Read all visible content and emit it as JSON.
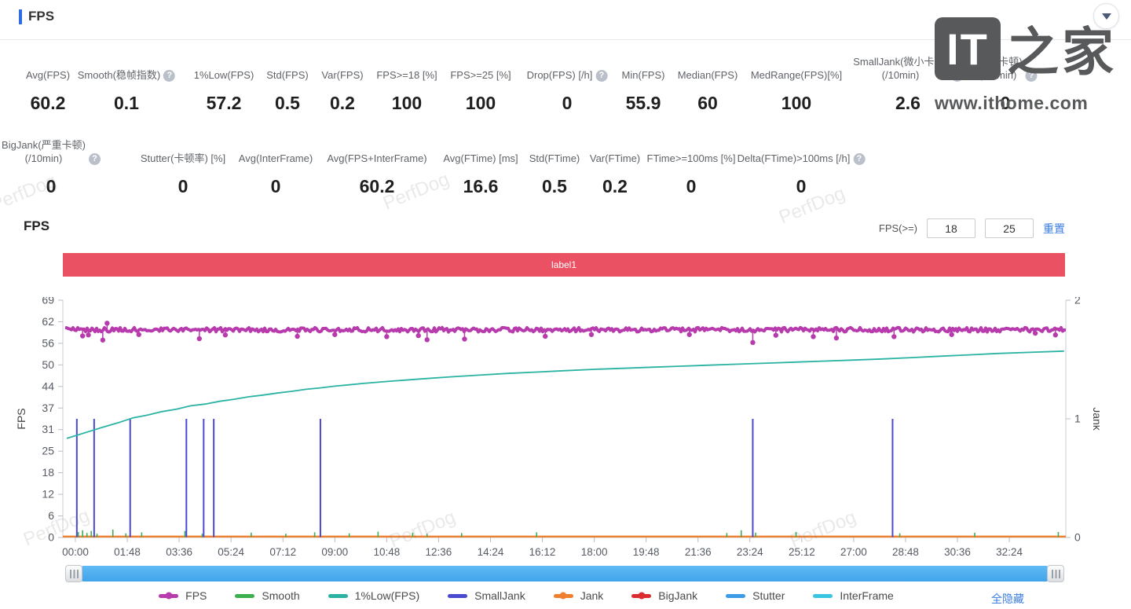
{
  "header": {
    "title": "FPS"
  },
  "collapse_tooltip": "collapse",
  "logo": {
    "it": "IT",
    "zhijia": "之家",
    "url": "www.ithome.com"
  },
  "watermark": "PerfDog",
  "stats_row1": [
    {
      "label": "Avg(FPS)",
      "value": "60.2",
      "help": false
    },
    {
      "label": "Smooth(稳帧指数)",
      "value": "0.1",
      "help": true
    },
    {
      "label": "1%Low(FPS)",
      "value": "57.2",
      "help": false
    },
    {
      "label": "Std(FPS)",
      "value": "0.5",
      "help": false
    },
    {
      "label": "Var(FPS)",
      "value": "0.2",
      "help": false
    },
    {
      "label": "FPS>=18 [%]",
      "value": "100",
      "help": false
    },
    {
      "label": "FPS>=25 [%]",
      "value": "100",
      "help": false
    },
    {
      "label": "Drop(FPS) [/h]",
      "value": "0",
      "help": true
    },
    {
      "label": "Min(FPS)",
      "value": "55.9",
      "help": false
    },
    {
      "label": "Median(FPS)",
      "value": "60",
      "help": false
    },
    {
      "label": "MedRange(FPS)[%]",
      "value": "100",
      "help": false
    },
    {
      "label": "SmallJank(微小卡顿)\n(/10min)",
      "value": "2.6",
      "help": true
    },
    {
      "label": "Jank(卡顿)\n(/10min)",
      "value": "0",
      "help": true
    }
  ],
  "stats_row2": [
    {
      "label": "BigJank(严重卡顿)\n(/10min)",
      "value": "0",
      "help": true
    },
    {
      "label": "Stutter(卡顿率) [%]",
      "value": "0",
      "help": false
    },
    {
      "label": "Avg(InterFrame)",
      "value": "0",
      "help": false
    },
    {
      "label": "Avg(FPS+InterFrame)",
      "value": "60.2",
      "help": false
    },
    {
      "label": "Avg(FTime) [ms]",
      "value": "16.6",
      "help": false
    },
    {
      "label": "Std(FTime)",
      "value": "0.5",
      "help": false
    },
    {
      "label": "Var(FTime)",
      "value": "0.2",
      "help": false
    },
    {
      "label": "FTime>=100ms [%]",
      "value": "0",
      "help": false
    },
    {
      "label": "Delta(FTime)>100ms [/h]",
      "value": "0",
      "help": true
    }
  ],
  "section": {
    "title": "FPS",
    "filter_label": "FPS(>=)",
    "input1": "18",
    "input2": "25",
    "reset": "重置"
  },
  "banner": {
    "text": "label1",
    "color": "#ea5263"
  },
  "chart_data": {
    "type": "line",
    "title": "label1",
    "x_tick_labels": [
      "00:00",
      "01:48",
      "03:36",
      "05:24",
      "07:12",
      "09:00",
      "10:48",
      "12:36",
      "14:24",
      "16:12",
      "18:00",
      "19:48",
      "21:36",
      "23:24",
      "25:12",
      "27:00",
      "28:48",
      "30:36",
      "32:24"
    ],
    "x_minutes_per_tick": 1.8,
    "left_axis": {
      "label": "FPS",
      "ticks": [
        0,
        6,
        12,
        18,
        25,
        31,
        37,
        44,
        50,
        56,
        62,
        69
      ],
      "max": 69
    },
    "right_axis": {
      "label": "Jank",
      "ticks": [
        0,
        1,
        2
      ],
      "max": 2
    },
    "series": [
      {
        "name": "BigJank",
        "color": "#db2c30",
        "type": "flat",
        "axis": "right",
        "value": 0,
        "w": 1.2
      },
      {
        "name": "Stutter",
        "color": "#3e9be8",
        "type": "flat",
        "axis": "right",
        "value": 0,
        "w": 1.2
      },
      {
        "name": "InterFrame",
        "color": "#3ac6e0",
        "type": "flat",
        "axis": "right",
        "value": 0,
        "w": 1.2
      },
      {
        "name": "Jank",
        "color": "#ef8030",
        "type": "flat",
        "axis": "right",
        "value": 0,
        "w": 2.4
      },
      {
        "name": "Smooth",
        "color": "#3daf4f",
        "type": "spikes",
        "axis": "left",
        "w": 1.6,
        "points": [
          [
            0.1,
            1.6
          ],
          [
            0.25,
            2.1
          ],
          [
            0.4,
            1.3
          ],
          [
            0.55,
            1.9
          ],
          [
            0.75,
            1.1
          ],
          [
            1.3,
            2.3
          ],
          [
            1.75,
            1.2
          ],
          [
            2.3,
            1.5
          ],
          [
            3.8,
            1.9
          ],
          [
            4.4,
            1.1
          ],
          [
            6.1,
            1.4
          ],
          [
            7.3,
            1.1
          ],
          [
            8.3,
            1.5
          ],
          [
            9.5,
            1.2
          ],
          [
            10.5,
            1.7
          ],
          [
            11.7,
            1.4
          ],
          [
            12.2,
            1.1
          ],
          [
            13.4,
            1.3
          ],
          [
            16.0,
            1.5
          ],
          [
            22.6,
            1.3
          ],
          [
            23.1,
            2.1
          ],
          [
            23.6,
            1.4
          ],
          [
            25.0,
            1.6
          ],
          [
            28.6,
            1.2
          ],
          [
            31.2,
            1.4
          ],
          [
            34.1,
            1.6
          ]
        ]
      },
      {
        "name": "SmallJank",
        "color": "#4a49d0",
        "type": "spikes",
        "axis": "right",
        "w": 2,
        "points": [
          [
            0.05,
            1
          ],
          [
            0.65,
            1
          ],
          [
            1.9,
            1
          ],
          [
            3.85,
            1
          ],
          [
            4.45,
            1
          ],
          [
            4.8,
            1
          ],
          [
            8.5,
            1
          ],
          [
            23.5,
            1
          ],
          [
            28.35,
            1
          ]
        ]
      },
      {
        "name": "1%Low(FPS)",
        "color": "#2ab3a3",
        "type": "line",
        "axis": "left",
        "w": 1.8,
        "points": [
          [
            -0.3,
            28.8
          ],
          [
            0.5,
            30.9
          ],
          [
            1,
            32.2
          ],
          [
            1.5,
            33.4
          ],
          [
            2,
            34.8
          ],
          [
            2.5,
            35.6
          ],
          [
            3,
            36.6
          ],
          [
            3.5,
            37.3
          ],
          [
            4,
            38.3
          ],
          [
            4.5,
            38.8
          ],
          [
            5,
            39.6
          ],
          [
            5.5,
            40.2
          ],
          [
            6,
            40.9
          ],
          [
            6.5,
            41.4
          ],
          [
            7,
            42.0
          ],
          [
            7.5,
            42.5
          ],
          [
            8,
            43.1
          ],
          [
            8.5,
            43.5
          ],
          [
            9,
            44.0
          ],
          [
            9.5,
            44.4
          ],
          [
            10,
            44.8
          ],
          [
            11,
            45.5
          ],
          [
            12,
            46.1
          ],
          [
            13,
            46.7
          ],
          [
            14,
            47.2
          ],
          [
            15,
            47.7
          ],
          [
            16,
            48.1
          ],
          [
            17,
            48.5
          ],
          [
            18,
            48.9
          ],
          [
            19,
            49.2
          ],
          [
            20,
            49.5
          ],
          [
            21,
            49.8
          ],
          [
            22,
            50.1
          ],
          [
            23,
            50.4
          ],
          [
            24,
            50.7
          ],
          [
            25,
            51.0
          ],
          [
            26,
            51.3
          ],
          [
            27,
            51.6
          ],
          [
            28,
            51.9
          ],
          [
            29,
            52.3
          ],
          [
            30,
            52.7
          ],
          [
            31,
            53.1
          ],
          [
            32,
            53.5
          ],
          [
            33,
            53.8
          ],
          [
            34.3,
            54.2
          ]
        ]
      },
      {
        "name": "FPS",
        "color": "#b83bad",
        "type": "noisy-line",
        "axis": "left",
        "w": 4,
        "base": 60.4,
        "noise": 0.65,
        "dips": [
          [
            0.25,
            58.6
          ],
          [
            0.45,
            58.9
          ],
          [
            0.95,
            57.4
          ],
          [
            1.1,
            62.3
          ],
          [
            2.2,
            59.0
          ],
          [
            4.3,
            57.8
          ],
          [
            5.2,
            58.9
          ],
          [
            7.7,
            58.5
          ],
          [
            9.0,
            59.0
          ],
          [
            10.8,
            58.4
          ],
          [
            11.9,
            58.7
          ],
          [
            12.2,
            57.5
          ],
          [
            13.5,
            57.7
          ],
          [
            16.3,
            58.5
          ],
          [
            17.9,
            59.0
          ],
          [
            21.3,
            59.0
          ],
          [
            23.5,
            56.7
          ],
          [
            24.3,
            58.8
          ],
          [
            25.6,
            58.4
          ],
          [
            26.4,
            58.0
          ],
          [
            28.4,
            58.4
          ],
          [
            30.4,
            59.0
          ],
          [
            33.3,
            59.4
          ],
          [
            34.0,
            58.9
          ]
        ]
      }
    ]
  },
  "legend": {
    "items": [
      {
        "label": "FPS",
        "color": "#b83bad",
        "dot": true
      },
      {
        "label": "Smooth",
        "color": "#3daf4f",
        "dot": false
      },
      {
        "label": "1%Low(FPS)",
        "color": "#2ab3a3",
        "dot": false
      },
      {
        "label": "SmallJank",
        "color": "#4a49d0",
        "dot": false
      },
      {
        "label": "Jank",
        "color": "#ef8030",
        "dot": true
      },
      {
        "label": "BigJank",
        "color": "#db2c30",
        "dot": true
      },
      {
        "label": "Stutter",
        "color": "#3e9be8",
        "dot": false
      },
      {
        "label": "InterFrame",
        "color": "#3ac6e0",
        "dot": false
      }
    ],
    "hide_all": "全隐藏"
  }
}
